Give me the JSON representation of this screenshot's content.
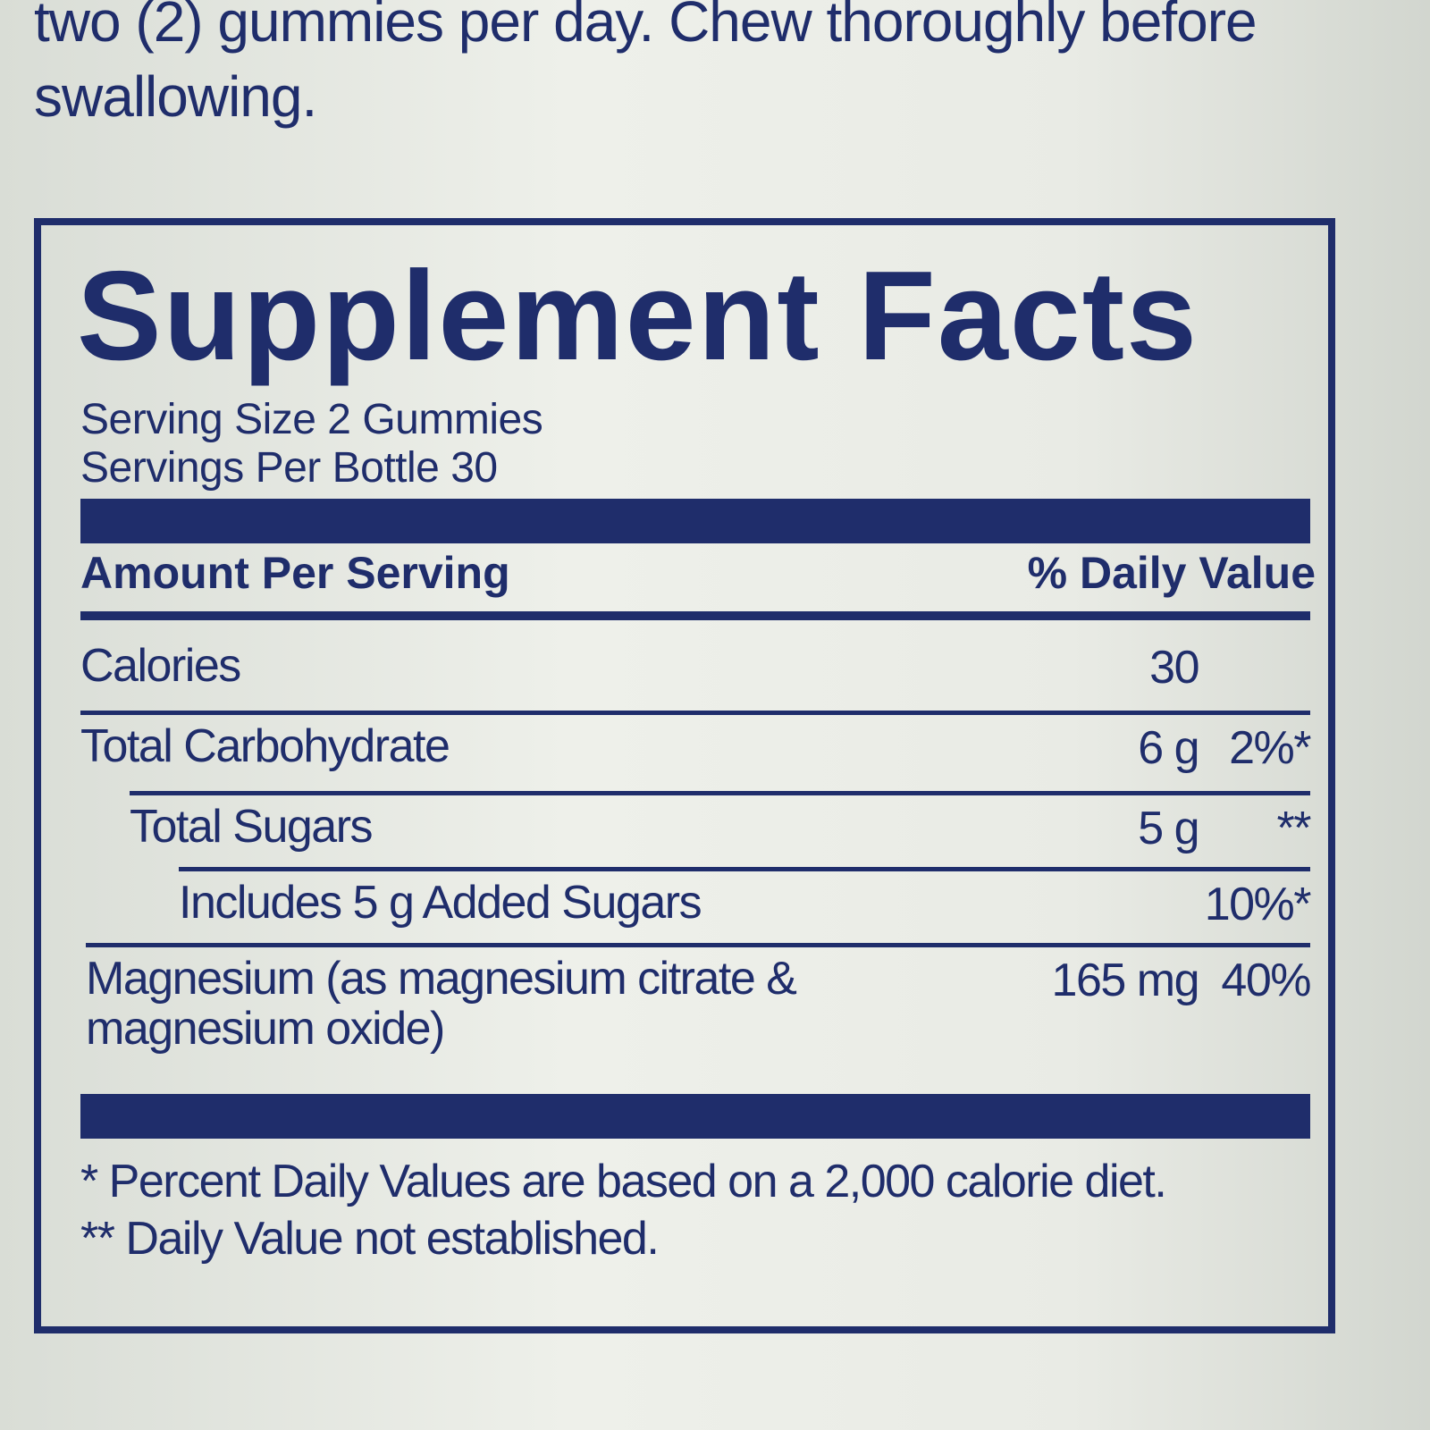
{
  "intro": "two (2) gummies per day. Chew thoroughly before swallowing.",
  "panel": {
    "title": "Supplement Facts",
    "serving_size": "Serving Size 2 Gummies",
    "servings_per_container": "Servings Per Bottle 30",
    "header": {
      "amount": "Amount Per Serving",
      "daily_value": "% Daily Value"
    },
    "rows": [
      {
        "name": "Calories",
        "amount": "30"
      },
      {
        "name": "Total Carbohydrate",
        "amount": "6 g",
        "dv": "2%*"
      },
      {
        "name": "Total Sugars",
        "amount": "5 g",
        "dv": "**"
      },
      {
        "name": "Includes 5 g Added Sugars",
        "dv": "10%*"
      },
      {
        "name": "Magnesium (as magnesium citrate & magnesium oxide)",
        "amount": "165 mg",
        "dv": "40%"
      }
    ],
    "footnotes": [
      "* Percent Daily Values are based on a 2,000 calorie diet.",
      "** Daily Value not established."
    ]
  }
}
